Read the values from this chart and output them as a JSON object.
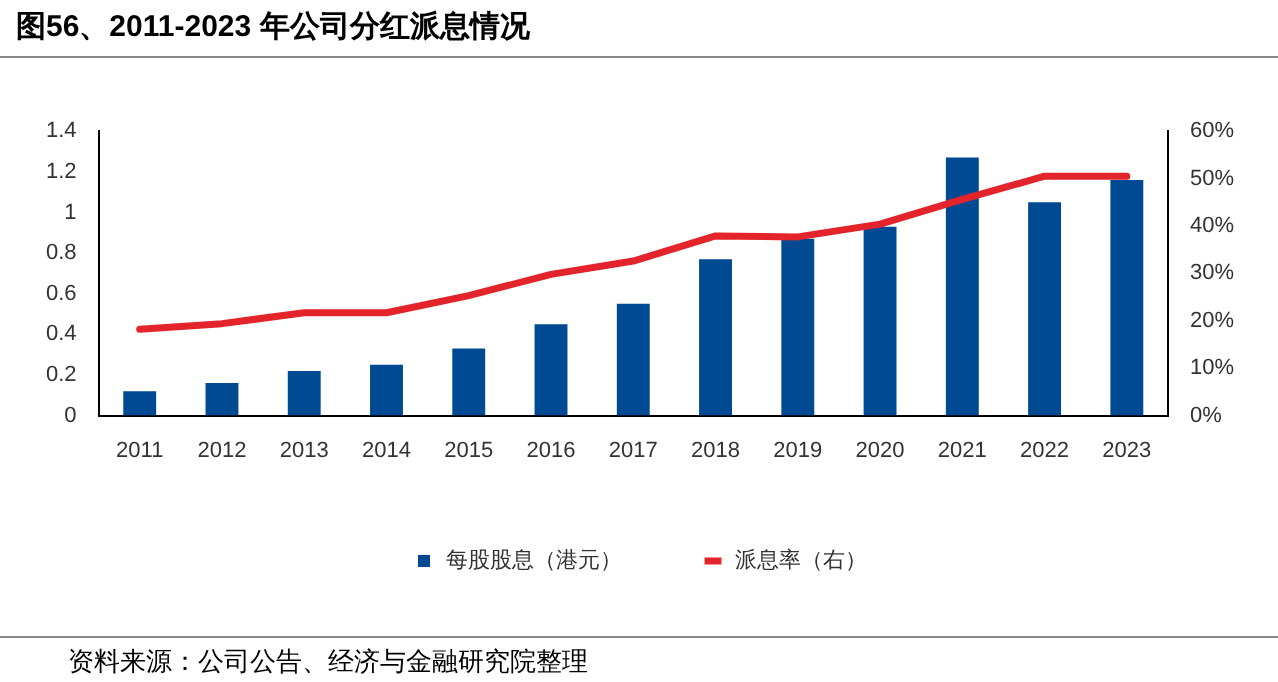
{
  "chart_data": {
    "type": "bar",
    "title": "图56、2011-2023 年公司分红派息情况",
    "categories": [
      "2011",
      "2012",
      "2013",
      "2014",
      "2015",
      "2016",
      "2017",
      "2018",
      "2019",
      "2020",
      "2021",
      "2022",
      "2023"
    ],
    "series": [
      {
        "name": "每股股息（港元）",
        "color": "#004a93",
        "values": [
          0.12,
          0.16,
          0.22,
          0.25,
          0.33,
          0.45,
          0.55,
          0.77,
          0.87,
          0.93,
          1.27,
          1.05,
          1.16
        ]
      },
      {
        "name": "派息率（右）",
        "type": "line",
        "axis": "y2",
        "color": "#e3242b",
        "values": [
          18.2,
          19.4,
          21.7,
          21.7,
          25.3,
          29.8,
          32.6,
          37.9,
          37.7,
          40.4,
          45.6,
          50.5,
          50.5
        ]
      }
    ],
    "ylim": [
      0,
      1.4
    ],
    "yticks": [
      0,
      0.2,
      0.4,
      0.6,
      0.8,
      1,
      1.2,
      1.4
    ],
    "y2lim": [
      0,
      60
    ],
    "y2ticks": [
      {
        "value": 0,
        "label": "0%"
      },
      {
        "value": 10,
        "label": "10%"
      },
      {
        "value": 20,
        "label": "20%"
      },
      {
        "value": 30,
        "label": "30%"
      },
      {
        "value": 40,
        "label": "40%"
      },
      {
        "value": 50,
        "label": "50%"
      },
      {
        "value": 60,
        "label": "60%"
      }
    ],
    "grid": false,
    "legend": "bottom",
    "marker": "none",
    "line_style": "solid",
    "annotations": [
      "资料来源：公司公告、经济与金融研究院整理"
    ]
  }
}
